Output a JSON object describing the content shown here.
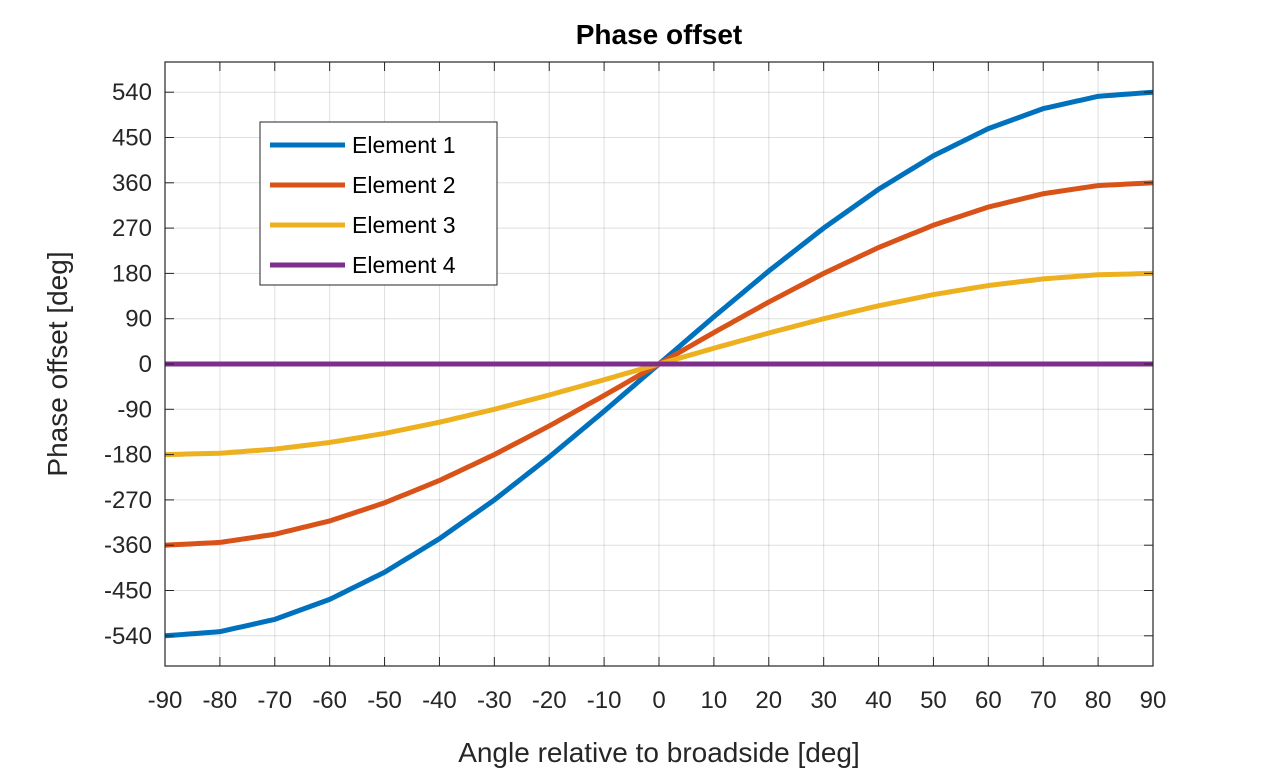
{
  "chart_data": {
    "type": "line",
    "title": "Phase offset",
    "xlabel": "Angle relative to broadside [deg]",
    "ylabel": "Phase offset [deg]",
    "xlim": [
      -90,
      90
    ],
    "ylim": [
      -600,
      600
    ],
    "xticks": [
      -90,
      -80,
      -70,
      -60,
      -50,
      -40,
      -30,
      -20,
      -10,
      0,
      10,
      20,
      30,
      40,
      50,
      60,
      70,
      80,
      90
    ],
    "yticks": [
      -540,
      -450,
      -360,
      -270,
      -180,
      -90,
      0,
      90,
      180,
      270,
      360,
      450,
      540
    ],
    "grid": true,
    "legend_position": "top-left",
    "x": [
      -90,
      -80,
      -70,
      -60,
      -50,
      -40,
      -30,
      -20,
      -10,
      0,
      10,
      20,
      30,
      40,
      50,
      60,
      70,
      80,
      90
    ],
    "series": [
      {
        "name": "Element 1",
        "color": "#0072BD",
        "values": [
          -540,
          -531.8,
          -507.4,
          -467.7,
          -413.7,
          -347.1,
          -270,
          -184.7,
          -93.8,
          0,
          93.8,
          184.7,
          270,
          347.1,
          413.7,
          467.7,
          507.4,
          531.8,
          540
        ]
      },
      {
        "name": "Element 2",
        "color": "#D95319",
        "values": [
          -360,
          -354.5,
          -338.3,
          -311.8,
          -275.8,
          -231.4,
          -180,
          -123.1,
          -62.5,
          0,
          62.5,
          123.1,
          180,
          231.4,
          275.8,
          311.8,
          338.3,
          354.5,
          360
        ]
      },
      {
        "name": "Element 3",
        "color": "#EDB120",
        "values": [
          -180,
          -177.3,
          -169.1,
          -155.9,
          -137.9,
          -115.7,
          -90,
          -61.6,
          -31.3,
          0,
          31.3,
          61.6,
          90,
          115.7,
          137.9,
          155.9,
          169.1,
          177.3,
          180
        ]
      },
      {
        "name": "Element 4",
        "color": "#7E2F8E",
        "values": [
          0,
          0,
          0,
          0,
          0,
          0,
          0,
          0,
          0,
          0,
          0,
          0,
          0,
          0,
          0,
          0,
          0,
          0,
          0
        ]
      }
    ]
  }
}
